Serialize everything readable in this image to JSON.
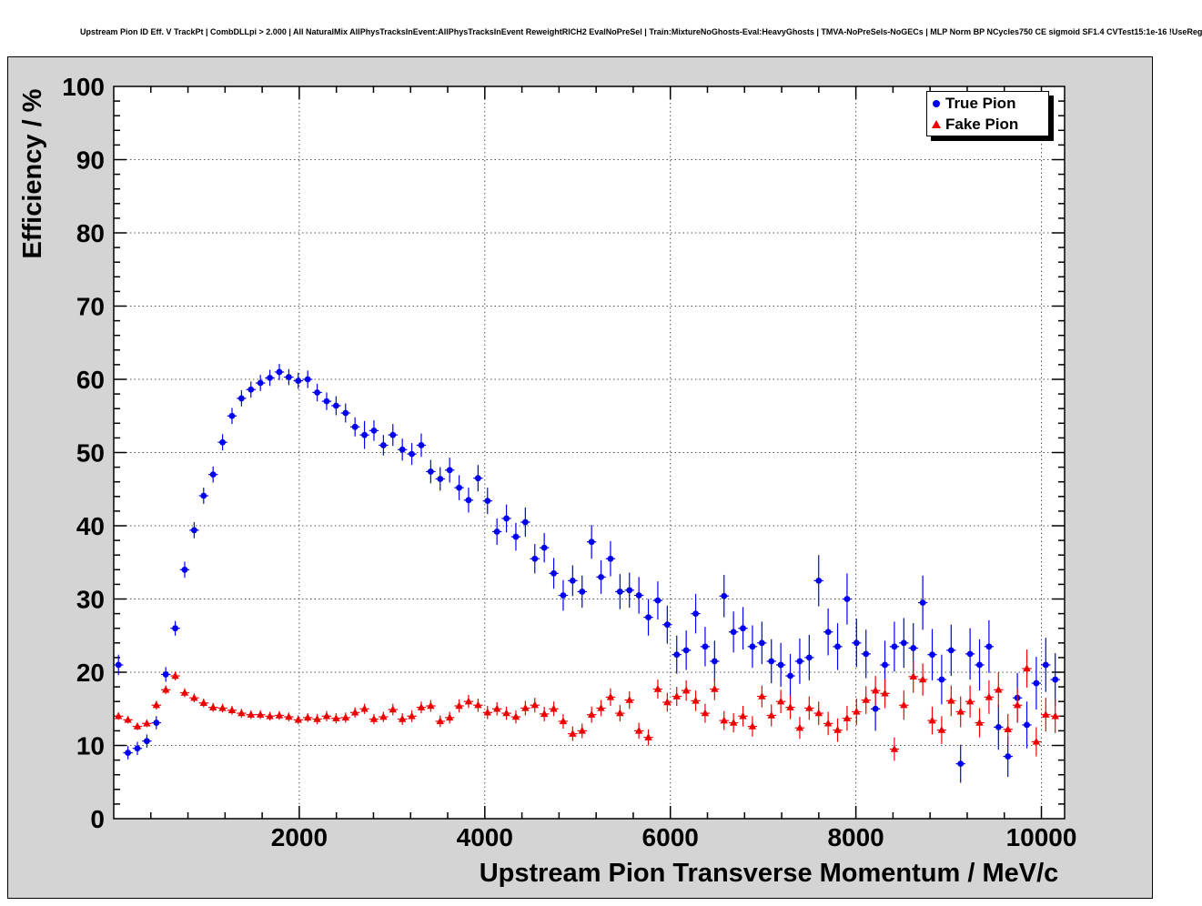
{
  "chart_data": {
    "type": "scatter",
    "title": "Upstream Pion ID Eff. V TrackPt | CombDLLpi > 2.000 | All NaturalMix AllPhysTracksInEvent:AllPhysTracksInEvent ReweightRICH2 EvalNoPreSel | Train:MixtureNoGhosts-Eval:HeavyGhosts | TMVA-NoPreSels-NoGECs | MLP Norm BP NCycles750 CE sigmoid SF1.4 CVTest15:1e-16 !UseReg",
    "xlabel": "Upstream Pion Transverse Momentum / MeV/c",
    "ylabel": "Efficiency / %",
    "xlim": [
      0,
      10250
    ],
    "ylim": [
      0,
      100
    ],
    "x_major_ticks": [
      2000,
      4000,
      6000,
      8000,
      10000
    ],
    "y_major_ticks": [
      0,
      10,
      20,
      30,
      40,
      50,
      60,
      70,
      80,
      90,
      100
    ],
    "x_tick_labels": [
      "2000",
      "4000",
      "6000",
      "8000",
      "10000"
    ],
    "y_tick_labels": [
      "0",
      "10",
      "20",
      "30",
      "40",
      "50",
      "60",
      "70",
      "80",
      "90",
      "100"
    ],
    "x_minor_step": 400,
    "y_minor_step": 2,
    "grid": "dotted",
    "legend": {
      "position": "top-right",
      "entries": [
        {
          "label": "True Pion",
          "marker": "circle",
          "color": "#0000ee"
        },
        {
          "label": "Fake Pion",
          "marker": "triangle",
          "color": "#ee0000"
        }
      ]
    },
    "series": [
      {
        "name": "True Pion",
        "marker": "circle",
        "color": "#0000ee",
        "x_halfwidth": 51,
        "points": [
          [
            51,
            21.0,
            1.4
          ],
          [
            153,
            9.0,
            0.9
          ],
          [
            255,
            9.6,
            0.9
          ],
          [
            357,
            10.6,
            0.9
          ],
          [
            459,
            13.1,
            0.9
          ],
          [
            561,
            19.7,
            1.0
          ],
          [
            663,
            26.0,
            1.0
          ],
          [
            765,
            34.0,
            1.1
          ],
          [
            867,
            39.4,
            1.1
          ],
          [
            969,
            44.1,
            1.1
          ],
          [
            1071,
            47.0,
            1.1
          ],
          [
            1173,
            51.4,
            1.1
          ],
          [
            1275,
            55.0,
            1.1
          ],
          [
            1377,
            57.4,
            1.1
          ],
          [
            1479,
            58.6,
            1.1
          ],
          [
            1581,
            59.5,
            1.1
          ],
          [
            1683,
            60.2,
            1.1
          ],
          [
            1785,
            61.0,
            1.1
          ],
          [
            1887,
            60.3,
            1.1
          ],
          [
            1989,
            59.8,
            1.1
          ],
          [
            2091,
            60.0,
            1.2
          ],
          [
            2193,
            58.2,
            1.2
          ],
          [
            2295,
            57.0,
            1.2
          ],
          [
            2397,
            56.4,
            1.3
          ],
          [
            2499,
            55.4,
            1.3
          ],
          [
            2601,
            53.5,
            1.3
          ],
          [
            2703,
            52.4,
            1.9
          ],
          [
            2805,
            53.0,
            1.4
          ],
          [
            2907,
            51.0,
            1.4
          ],
          [
            3009,
            52.4,
            1.5
          ],
          [
            3111,
            50.4,
            1.5
          ],
          [
            3213,
            49.8,
            1.5
          ],
          [
            3315,
            51.0,
            1.6
          ],
          [
            3417,
            47.4,
            1.6
          ],
          [
            3519,
            46.4,
            1.6
          ],
          [
            3621,
            47.6,
            1.7
          ],
          [
            3723,
            45.2,
            1.7
          ],
          [
            3825,
            43.5,
            1.7
          ],
          [
            3927,
            46.5,
            1.8
          ],
          [
            4029,
            43.4,
            1.8
          ],
          [
            4131,
            39.2,
            1.8
          ],
          [
            4233,
            41.0,
            1.9
          ],
          [
            4335,
            38.5,
            1.9
          ],
          [
            4437,
            40.5,
            2.0
          ],
          [
            4539,
            35.5,
            2.0
          ],
          [
            4641,
            37.0,
            2.0
          ],
          [
            4743,
            33.5,
            2.1
          ],
          [
            4845,
            30.5,
            2.1
          ],
          [
            4947,
            32.5,
            2.1
          ],
          [
            5049,
            31.0,
            2.2
          ],
          [
            5151,
            37.8,
            2.3
          ],
          [
            5253,
            33.0,
            2.3
          ],
          [
            5355,
            35.5,
            2.4
          ],
          [
            5457,
            31.0,
            2.4
          ],
          [
            5559,
            31.2,
            2.4
          ],
          [
            5661,
            30.5,
            2.5
          ],
          [
            5763,
            27.5,
            2.5
          ],
          [
            5865,
            29.8,
            2.6
          ],
          [
            5967,
            26.5,
            2.6
          ],
          [
            6069,
            22.4,
            2.6
          ],
          [
            6171,
            23.0,
            2.7
          ],
          [
            6273,
            28.0,
            2.7
          ],
          [
            6375,
            23.5,
            2.7
          ],
          [
            6477,
            21.5,
            2.8
          ],
          [
            6579,
            30.4,
            2.9
          ],
          [
            6681,
            25.5,
            2.8
          ],
          [
            6783,
            26.0,
            2.9
          ],
          [
            6885,
            23.5,
            2.9
          ],
          [
            6987,
            24.0,
            2.9
          ],
          [
            7089,
            21.5,
            3.0
          ],
          [
            7191,
            21.0,
            3.0
          ],
          [
            7293,
            19.5,
            3.0
          ],
          [
            7395,
            21.5,
            3.1
          ],
          [
            7497,
            22.0,
            3.1
          ],
          [
            7599,
            32.5,
            3.5
          ],
          [
            7701,
            25.5,
            3.2
          ],
          [
            7803,
            23.5,
            3.2
          ],
          [
            7905,
            30.0,
            3.5
          ],
          [
            8007,
            24.0,
            3.3
          ],
          [
            8109,
            22.5,
            3.3
          ],
          [
            8211,
            15.0,
            3.0
          ],
          [
            8313,
            21.0,
            3.3
          ],
          [
            8415,
            23.5,
            3.4
          ],
          [
            8517,
            24.0,
            3.4
          ],
          [
            8619,
            23.3,
            3.4
          ],
          [
            8721,
            29.5,
            3.7
          ],
          [
            8823,
            22.4,
            3.5
          ],
          [
            8925,
            19.0,
            3.4
          ],
          [
            9027,
            23.0,
            3.5
          ],
          [
            9129,
            7.5,
            2.6
          ],
          [
            9231,
            22.5,
            3.5
          ],
          [
            9333,
            21.0,
            3.5
          ],
          [
            9435,
            23.5,
            3.6
          ],
          [
            9537,
            12.5,
            3.1
          ],
          [
            9639,
            8.5,
            2.8
          ],
          [
            9741,
            16.5,
            3.4
          ],
          [
            9843,
            12.8,
            3.2
          ],
          [
            9945,
            18.5,
            3.6
          ],
          [
            10047,
            21.0,
            3.7
          ],
          [
            10149,
            19.0,
            3.6
          ]
        ]
      },
      {
        "name": "Fake Pion",
        "marker": "triangle",
        "color": "#ee0000",
        "x_halfwidth": 51,
        "points": [
          [
            51,
            14.0,
            0.5
          ],
          [
            153,
            13.5,
            0.5
          ],
          [
            255,
            12.6,
            0.5
          ],
          [
            357,
            13.0,
            0.5
          ],
          [
            459,
            15.5,
            0.6
          ],
          [
            561,
            17.6,
            0.6
          ],
          [
            663,
            19.5,
            0.6
          ],
          [
            765,
            17.2,
            0.6
          ],
          [
            867,
            16.5,
            0.6
          ],
          [
            969,
            15.8,
            0.6
          ],
          [
            1071,
            15.2,
            0.6
          ],
          [
            1173,
            15.1,
            0.6
          ],
          [
            1275,
            14.8,
            0.6
          ],
          [
            1377,
            14.4,
            0.6
          ],
          [
            1479,
            14.2,
            0.6
          ],
          [
            1581,
            14.2,
            0.6
          ],
          [
            1683,
            14.0,
            0.6
          ],
          [
            1785,
            14.1,
            0.6
          ],
          [
            1887,
            13.9,
            0.6
          ],
          [
            1989,
            13.5,
            0.6
          ],
          [
            2091,
            13.8,
            0.6
          ],
          [
            2193,
            13.6,
            0.7
          ],
          [
            2295,
            14.0,
            0.7
          ],
          [
            2397,
            13.7,
            0.7
          ],
          [
            2499,
            13.8,
            0.7
          ],
          [
            2601,
            14.5,
            0.7
          ],
          [
            2703,
            15.0,
            0.7
          ],
          [
            2805,
            13.6,
            0.7
          ],
          [
            2907,
            13.9,
            0.7
          ],
          [
            3009,
            14.9,
            0.8
          ],
          [
            3111,
            13.6,
            0.8
          ],
          [
            3213,
            14.0,
            0.8
          ],
          [
            3315,
            15.2,
            0.8
          ],
          [
            3417,
            15.4,
            0.8
          ],
          [
            3519,
            13.3,
            0.8
          ],
          [
            3621,
            13.8,
            0.8
          ],
          [
            3723,
            15.4,
            0.9
          ],
          [
            3825,
            16.0,
            0.9
          ],
          [
            3927,
            15.5,
            0.9
          ],
          [
            4029,
            14.5,
            0.9
          ],
          [
            4131,
            15.0,
            0.9
          ],
          [
            4233,
            14.4,
            0.9
          ],
          [
            4335,
            13.9,
            0.9
          ],
          [
            4437,
            15.1,
            1.0
          ],
          [
            4539,
            15.5,
            1.0
          ],
          [
            4641,
            14.3,
            1.0
          ],
          [
            4743,
            15.0,
            1.0
          ],
          [
            4845,
            13.3,
            1.0
          ],
          [
            4947,
            11.6,
            1.0
          ],
          [
            5049,
            12.0,
            1.0
          ],
          [
            5151,
            14.2,
            1.1
          ],
          [
            5253,
            15.1,
            1.1
          ],
          [
            5355,
            16.6,
            1.2
          ],
          [
            5457,
            14.4,
            1.1
          ],
          [
            5559,
            16.2,
            1.2
          ],
          [
            5661,
            12.0,
            1.1
          ],
          [
            5763,
            11.1,
            1.1
          ],
          [
            5865,
            17.7,
            1.3
          ],
          [
            5967,
            15.9,
            1.3
          ],
          [
            6069,
            16.7,
            1.3
          ],
          [
            6171,
            17.5,
            1.4
          ],
          [
            6273,
            16.1,
            1.4
          ],
          [
            6375,
            14.4,
            1.3
          ],
          [
            6477,
            17.7,
            1.5
          ],
          [
            6579,
            13.4,
            1.3
          ],
          [
            6681,
            13.1,
            1.3
          ],
          [
            6783,
            14.0,
            1.4
          ],
          [
            6885,
            12.6,
            1.4
          ],
          [
            6987,
            16.7,
            1.5
          ],
          [
            7089,
            14.1,
            1.5
          ],
          [
            7191,
            16.0,
            1.6
          ],
          [
            7293,
            15.2,
            1.6
          ],
          [
            7395,
            12.4,
            1.5
          ],
          [
            7497,
            15.1,
            1.6
          ],
          [
            7599,
            14.4,
            1.6
          ],
          [
            7701,
            13.0,
            1.6
          ],
          [
            7803,
            12.1,
            1.6
          ],
          [
            7905,
            13.7,
            1.7
          ],
          [
            8007,
            14.6,
            1.8
          ],
          [
            8109,
            16.2,
            1.9
          ],
          [
            8211,
            17.5,
            2.0
          ],
          [
            8313,
            17.1,
            2.0
          ],
          [
            8415,
            9.5,
            1.6
          ],
          [
            8517,
            15.5,
            2.0
          ],
          [
            8619,
            19.4,
            2.2
          ],
          [
            8721,
            19.0,
            2.2
          ],
          [
            8823,
            13.4,
            1.9
          ],
          [
            8925,
            12.1,
            1.9
          ],
          [
            9027,
            16.1,
            2.1
          ],
          [
            9129,
            14.6,
            2.1
          ],
          [
            9231,
            16.0,
            2.2
          ],
          [
            9333,
            13.1,
            2.0
          ],
          [
            9435,
            16.6,
            2.3
          ],
          [
            9537,
            17.6,
            2.4
          ],
          [
            9639,
            12.2,
            2.1
          ],
          [
            9741,
            15.5,
            2.3
          ],
          [
            9843,
            20.5,
            2.6
          ],
          [
            9945,
            10.5,
            2.0
          ],
          [
            10047,
            14.2,
            2.3
          ],
          [
            10149,
            14.0,
            2.3
          ]
        ]
      }
    ]
  }
}
